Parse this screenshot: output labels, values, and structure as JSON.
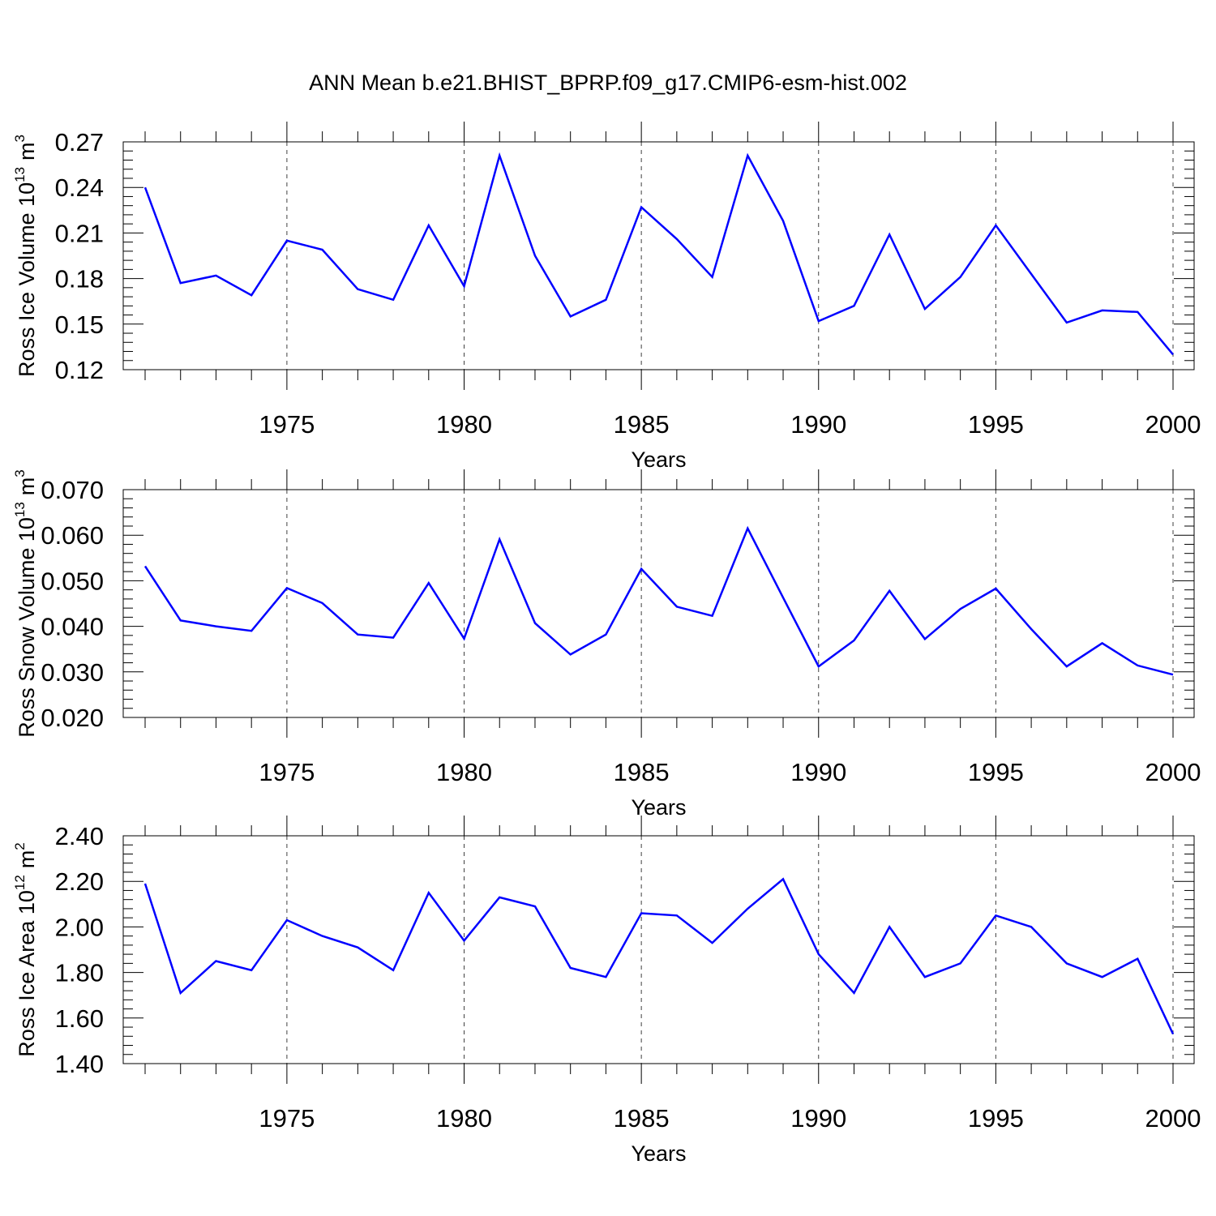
{
  "title": "ANN Mean b.e21.BHIST_BPRP.f09_g17.CMIP6-esm-hist.002",
  "colors": {
    "line": "#0000ff",
    "axis": "#000000",
    "grid": "#000000"
  },
  "chart_data": [
    {
      "type": "line",
      "xlabel": "Years",
      "ylabel_prefix": "Ross Ice Volume 10",
      "ylabel_exponent": "13",
      "ylabel_unit": "m",
      "ylabel_unit_exponent": "3",
      "xlim": [
        1971,
        2000
      ],
      "ylim": [
        0.12,
        0.27
      ],
      "x_ticks": [
        "1975",
        "1980",
        "1985",
        "1990",
        "1995",
        "2000"
      ],
      "y_ticks": [
        "0.12",
        "0.15",
        "0.18",
        "0.21",
        "0.24",
        "0.27"
      ],
      "grid": "dashed vertical lines at major x ticks",
      "x": [
        1971,
        1972,
        1973,
        1974,
        1975,
        1976,
        1977,
        1978,
        1979,
        1980,
        1981,
        1982,
        1983,
        1984,
        1985,
        1986,
        1987,
        1988,
        1989,
        1990,
        1991,
        1992,
        1993,
        1994,
        1995,
        1996,
        1997,
        1998,
        1999,
        2000
      ],
      "values": [
        0.24,
        0.177,
        0.182,
        0.169,
        0.205,
        0.199,
        0.173,
        0.166,
        0.215,
        0.175,
        0.261,
        0.195,
        0.155,
        0.166,
        0.227,
        0.206,
        0.181,
        0.261,
        0.218,
        0.152,
        0.162,
        0.209,
        0.16,
        0.181,
        0.215,
        0.183,
        0.151,
        0.159,
        0.158,
        0.13
      ]
    },
    {
      "type": "line",
      "xlabel": "Years",
      "ylabel_prefix": "Ross Snow Volume 10",
      "ylabel_exponent": "13",
      "ylabel_unit": "m",
      "ylabel_unit_exponent": "3",
      "xlim": [
        1971,
        2000
      ],
      "ylim": [
        0.02,
        0.07
      ],
      "x_ticks": [
        "1975",
        "1980",
        "1985",
        "1990",
        "1995",
        "2000"
      ],
      "y_ticks": [
        "0.020",
        "0.030",
        "0.040",
        "0.050",
        "0.060",
        "0.070"
      ],
      "grid": "dashed vertical lines at major x ticks",
      "x": [
        1971,
        1972,
        1973,
        1974,
        1975,
        1976,
        1977,
        1978,
        1979,
        1980,
        1981,
        1982,
        1983,
        1984,
        1985,
        1986,
        1987,
        1988,
        1989,
        1990,
        1991,
        1992,
        1993,
        1994,
        1995,
        1996,
        1997,
        1998,
        1999,
        2000
      ],
      "values": [
        0.0532,
        0.0413,
        0.04,
        0.039,
        0.0484,
        0.0451,
        0.0382,
        0.0375,
        0.0495,
        0.0373,
        0.0591,
        0.0407,
        0.0338,
        0.0382,
        0.0526,
        0.0443,
        0.0423,
        0.0615,
        0.0463,
        0.0312,
        0.0369,
        0.0478,
        0.0372,
        0.0438,
        0.0483,
        0.0394,
        0.0312,
        0.0363,
        0.0314,
        0.0294
      ]
    },
    {
      "type": "line",
      "xlabel": "Years",
      "ylabel_prefix": "Ross Ice Area 10",
      "ylabel_exponent": "12",
      "ylabel_unit": "m",
      "ylabel_unit_exponent": "2",
      "xlim": [
        1971,
        2000
      ],
      "ylim": [
        1.4,
        2.4
      ],
      "x_ticks": [
        "1975",
        "1980",
        "1985",
        "1990",
        "1995",
        "2000"
      ],
      "y_ticks": [
        "1.40",
        "1.60",
        "1.80",
        "2.00",
        "2.20",
        "2.40"
      ],
      "grid": "dashed vertical lines at major x ticks",
      "x": [
        1971,
        1972,
        1973,
        1974,
        1975,
        1976,
        1977,
        1978,
        1979,
        1980,
        1981,
        1982,
        1983,
        1984,
        1985,
        1986,
        1987,
        1988,
        1989,
        1990,
        1991,
        1992,
        1993,
        1994,
        1995,
        1996,
        1997,
        1998,
        1999,
        2000
      ],
      "values": [
        2.19,
        1.71,
        1.85,
        1.81,
        2.03,
        1.96,
        1.91,
        1.81,
        2.15,
        1.94,
        2.13,
        2.09,
        1.82,
        1.78,
        2.06,
        2.05,
        1.93,
        2.08,
        2.21,
        1.88,
        1.71,
        2.0,
        1.78,
        1.84,
        2.05,
        2.0,
        1.84,
        1.78,
        1.86,
        1.53
      ]
    }
  ]
}
